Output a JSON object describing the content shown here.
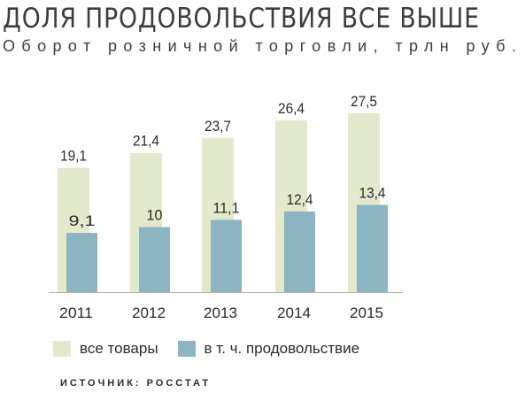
{
  "header": {
    "title": "ДОЛЯ ПРОДОВОЛЬСТВИЯ ВСЕ ВЫШЕ",
    "subtitle": "Оборот розничной торговли, трлн руб."
  },
  "source": "ИСТОЧНИК: РОССТАТ",
  "chart_data": {
    "type": "bar",
    "title": "ДОЛЯ ПРОДОВОЛЬСТВИЯ ВСЕ ВЫШЕ",
    "subtitle": "Оборот розничной торговли, трлн руб.",
    "categories": [
      "2011",
      "2012",
      "2013",
      "2014",
      "2015"
    ],
    "series": [
      {
        "name": "все товары",
        "values": [
          19.1,
          21.4,
          23.7,
          26.4,
          27.5
        ],
        "labels": [
          "19,1",
          "21,4",
          "23,7",
          "26,4",
          "27,5"
        ],
        "color": "#e3e9cc"
      },
      {
        "name": "в т. ч. продовольствие",
        "values": [
          9.1,
          10,
          11.1,
          12.4,
          13.4
        ],
        "labels": [
          "9,1",
          "10",
          "11,1",
          "12,4",
          "13,4"
        ],
        "color": "#8db4c1"
      }
    ],
    "xlabel": "",
    "ylabel": "",
    "ylim": [
      0,
      30
    ],
    "grid": false,
    "legend": "bottom",
    "bar_layout": "overlapped"
  }
}
